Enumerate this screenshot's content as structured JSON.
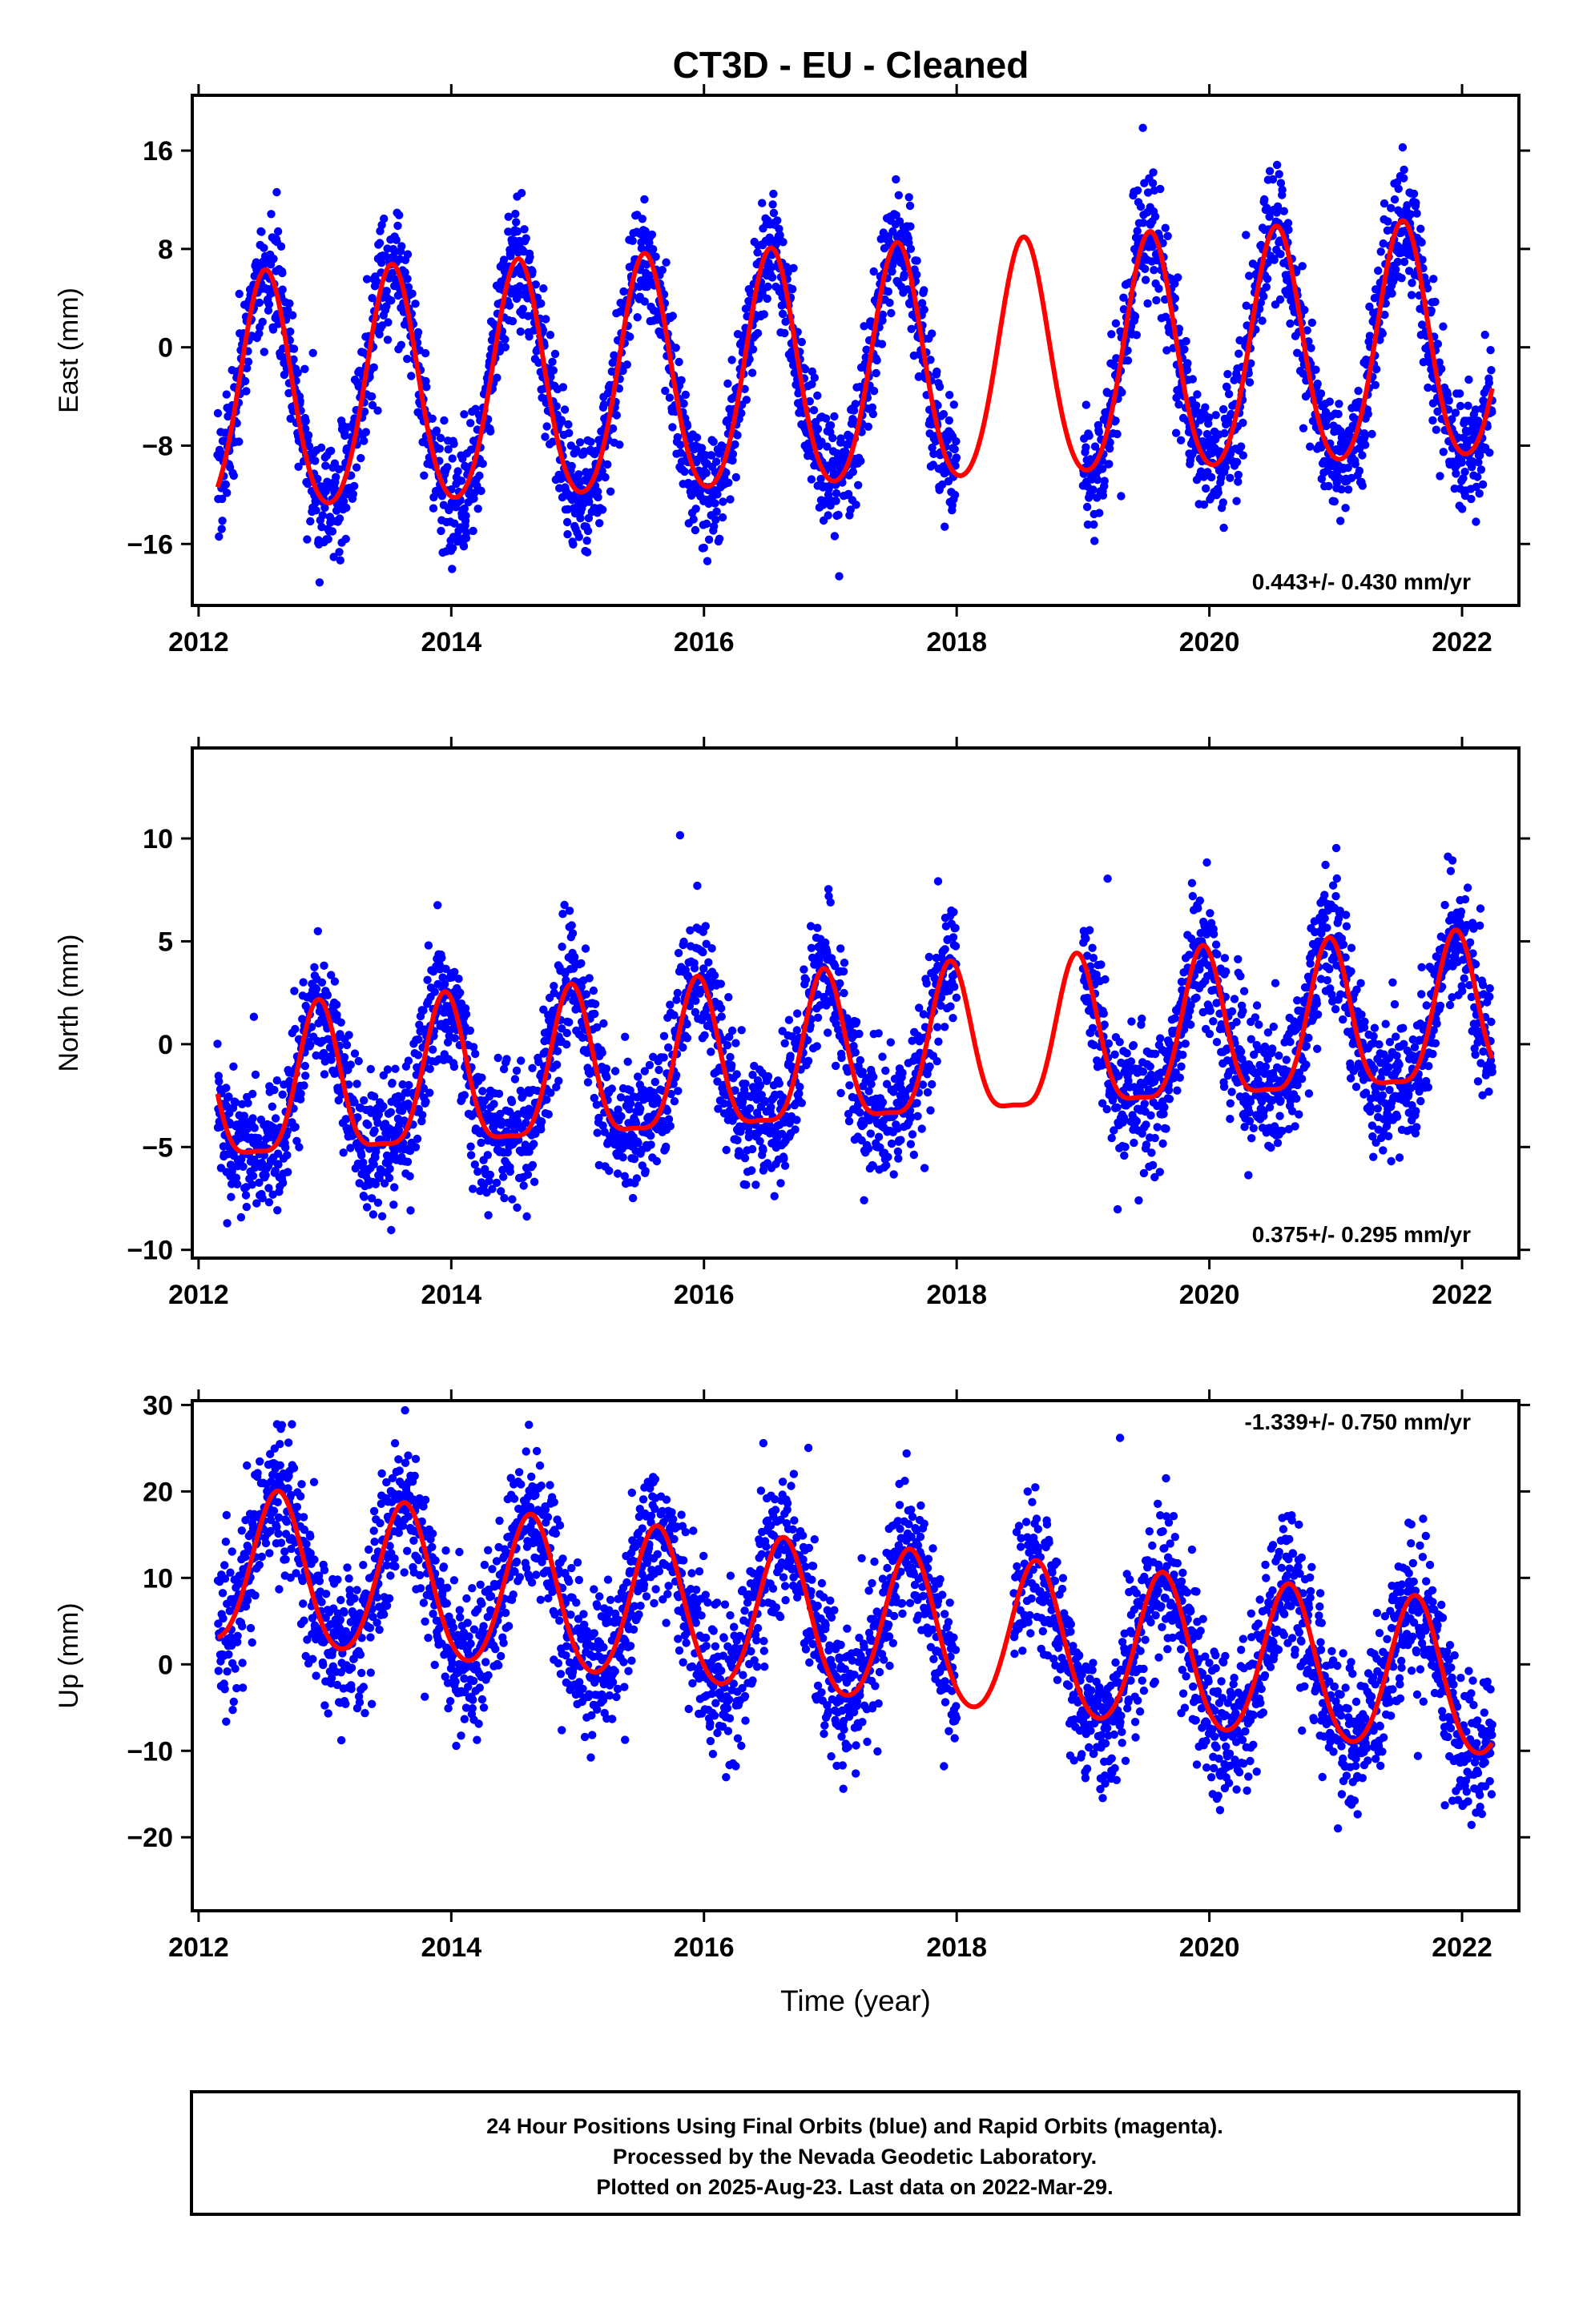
{
  "chart_data": [
    {
      "type": "scatter",
      "title": "CT3D  - EU - Cleaned",
      "ylabel": "East (mm)",
      "xlabel": "",
      "xlim": [
        2011.95,
        2022.45
      ],
      "ylim": [
        -21,
        20.5
      ],
      "xticks": [
        2012,
        2014,
        2016,
        2018,
        2020,
        2022
      ],
      "xtick_labels": [
        "2012",
        "2014",
        "2016",
        "2018",
        "2020",
        "2022"
      ],
      "yticks": [
        -16,
        -8,
        0,
        8,
        16
      ],
      "ytick_labels": [
        "−16",
        "−8",
        "0",
        "8",
        "16"
      ],
      "rate_label": "0.443+/- 0.430 mm/yr",
      "trend_mm_per_yr": 0.443,
      "offset_mm": -2.3,
      "annual_amplitude_mm": 9.6,
      "peak_phase_yr": 0.53,
      "semiannual_amplitude_mm": 1.0,
      "scatter_sigma_mm": 2.4,
      "gaps": [
        [
          2018.0,
          2019.0
        ]
      ],
      "series": [
        {
          "name": "Final Orbits",
          "kind": "points",
          "color": "#0000ff",
          "x_range": [
            2012.15,
            2022.24
          ]
        },
        {
          "name": "Model",
          "kind": "line",
          "color": "#ff0000",
          "x_range": [
            2012.15,
            2022.24
          ]
        }
      ]
    },
    {
      "type": "scatter",
      "title": "",
      "ylabel": "North (mm)",
      "xlabel": "",
      "xlim": [
        2011.95,
        2022.45
      ],
      "ylim": [
        -10.4,
        14.4
      ],
      "xticks": [
        2012,
        2014,
        2016,
        2018,
        2020,
        2022
      ],
      "xtick_labels": [
        "2012",
        "2014",
        "2016",
        "2018",
        "2020",
        "2022"
      ],
      "yticks": [
        -10,
        -5,
        0,
        5,
        10
      ],
      "ytick_labels": [
        "−10",
        "−5",
        "0",
        "5",
        "10"
      ],
      "rate_label": "0.375+/- 0.295 mm/yr",
      "trend_mm_per_yr": 0.375,
      "offset_mm": -0.9,
      "annual_amplitude_mm": 3.6,
      "peak_phase_yr": 0.95,
      "semiannual_amplitude_mm": 1.0,
      "scatter_sigma_mm": 1.6,
      "gaps": [
        [
          2018.0,
          2019.0
        ]
      ],
      "series": [
        {
          "name": "Final Orbits",
          "kind": "points",
          "color": "#0000ff",
          "x_range": [
            2012.15,
            2022.24
          ]
        },
        {
          "name": "Model",
          "kind": "line",
          "color": "#ff0000",
          "x_range": [
            2012.15,
            2022.24
          ]
        }
      ]
    },
    {
      "type": "scatter",
      "title": "",
      "ylabel": "Up (mm)",
      "xlabel": "Time (year)",
      "xlim": [
        2011.95,
        2022.45
      ],
      "ylim": [
        -28.5,
        30.5
      ],
      "xticks": [
        2012,
        2014,
        2016,
        2018,
        2020,
        2022
      ],
      "xtick_labels": [
        "2012",
        "2014",
        "2016",
        "2018",
        "2020",
        "2022"
      ],
      "yticks": [
        -20,
        -10,
        0,
        10,
        20,
        30
      ],
      "ytick_labels": [
        "−20",
        "−10",
        "0",
        "10",
        "20",
        "30"
      ],
      "rate_label": "-1.339+/- 0.750 mm/yr",
      "trend_mm_per_yr": -1.339,
      "offset_mm": 4.6,
      "annual_amplitude_mm": 8.8,
      "peak_phase_yr": 0.63,
      "semiannual_amplitude_mm": 0.8,
      "scatter_sigma_mm": 4.2,
      "gaps": [
        [
          2018.0,
          2018.45
        ]
      ],
      "series": [
        {
          "name": "Final Orbits",
          "kind": "points",
          "color": "#0000ff",
          "x_range": [
            2012.15,
            2022.24
          ]
        },
        {
          "name": "Model",
          "kind": "line",
          "color": "#ff0000",
          "x_range": [
            2012.15,
            2022.24
          ]
        }
      ]
    }
  ],
  "footer": {
    "line1": "24 Hour Positions Using Final Orbits (blue) and Rapid Orbits (magenta).",
    "line2": "Processed by the Nevada Geodetic Laboratory.",
    "line3": "Plotted on 2025-Aug-23. Last data on 2022-Mar-29."
  }
}
